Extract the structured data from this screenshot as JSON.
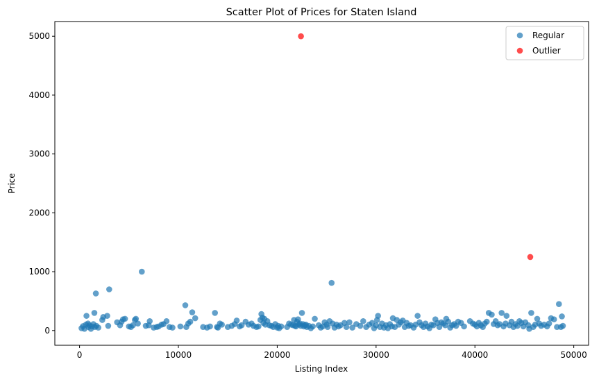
{
  "chart_data": {
    "type": "scatter",
    "title": "Scatter Plot of Prices for Staten Island",
    "xlabel": "Listing Index",
    "ylabel": "Price",
    "xlim": [
      -2500,
      51500
    ],
    "ylim": [
      -250,
      5250
    ],
    "xticks": [
      0,
      10000,
      20000,
      30000,
      40000,
      50000
    ],
    "yticks": [
      0,
      1000,
      2000,
      3000,
      4000,
      5000
    ],
    "xtick_labels": [
      "0",
      "10000",
      "20000",
      "30000",
      "40000",
      "50000"
    ],
    "ytick_labels": [
      "0",
      "1000",
      "2000",
      "3000",
      "4000",
      "5000"
    ],
    "grid": false,
    "legend_position": "top-right",
    "series": [
      {
        "name": "Regular",
        "color": "#1f77b4",
        "points": [
          [
            200,
            40
          ],
          [
            350,
            75
          ],
          [
            500,
            30
          ],
          [
            650,
            100
          ],
          [
            700,
            250
          ],
          [
            850,
            120
          ],
          [
            900,
            60
          ],
          [
            1000,
            90
          ],
          [
            1150,
            30
          ],
          [
            1250,
            70
          ],
          [
            1400,
            110
          ],
          [
            1500,
            300
          ],
          [
            1550,
            60
          ],
          [
            1650,
            630
          ],
          [
            1700,
            80
          ],
          [
            1900,
            50
          ],
          [
            2300,
            180
          ],
          [
            2400,
            230
          ],
          [
            2800,
            250
          ],
          [
            2900,
            80
          ],
          [
            3000,
            700
          ],
          [
            3800,
            140
          ],
          [
            4100,
            90
          ],
          [
            4250,
            150
          ],
          [
            4400,
            190
          ],
          [
            4600,
            200
          ],
          [
            5000,
            70
          ],
          [
            5200,
            60
          ],
          [
            5400,
            90
          ],
          [
            5600,
            180
          ],
          [
            5700,
            200
          ],
          [
            5900,
            120
          ],
          [
            6300,
            1000
          ],
          [
            6700,
            80
          ],
          [
            7000,
            90
          ],
          [
            7100,
            160
          ],
          [
            7500,
            50
          ],
          [
            7800,
            60
          ],
          [
            8000,
            70
          ],
          [
            8300,
            100
          ],
          [
            8500,
            110
          ],
          [
            8800,
            160
          ],
          [
            9100,
            60
          ],
          [
            9400,
            50
          ],
          [
            10200,
            70
          ],
          [
            10700,
            430
          ],
          [
            10800,
            60
          ],
          [
            11000,
            120
          ],
          [
            11200,
            150
          ],
          [
            11400,
            310
          ],
          [
            11700,
            210
          ],
          [
            12500,
            60
          ],
          [
            12900,
            50
          ],
          [
            13200,
            70
          ],
          [
            13700,
            300
          ],
          [
            13900,
            60
          ],
          [
            14000,
            50
          ],
          [
            14200,
            120
          ],
          [
            14400,
            100
          ],
          [
            15000,
            60
          ],
          [
            15400,
            80
          ],
          [
            15700,
            110
          ],
          [
            15900,
            170
          ],
          [
            16200,
            70
          ],
          [
            16400,
            90
          ],
          [
            16800,
            150
          ],
          [
            17100,
            100
          ],
          [
            17400,
            120
          ],
          [
            17600,
            80
          ],
          [
            17900,
            60
          ],
          [
            18100,
            70
          ],
          [
            18300,
            180
          ],
          [
            18400,
            280
          ],
          [
            18500,
            220
          ],
          [
            18600,
            130
          ],
          [
            18700,
            200
          ],
          [
            18800,
            100
          ],
          [
            19000,
            160
          ],
          [
            19200,
            90
          ],
          [
            19400,
            80
          ],
          [
            19600,
            60
          ],
          [
            19800,
            110
          ],
          [
            20000,
            50
          ],
          [
            20100,
            80
          ],
          [
            20200,
            40
          ],
          [
            20400,
            70
          ],
          [
            21000,
            60
          ],
          [
            21200,
            120
          ],
          [
            21400,
            100
          ],
          [
            21600,
            90
          ],
          [
            21700,
            180
          ],
          [
            21800,
            80
          ],
          [
            21900,
            70
          ],
          [
            22000,
            150
          ],
          [
            22100,
            190
          ],
          [
            22200,
            100
          ],
          [
            22300,
            120
          ],
          [
            22400,
            80
          ],
          [
            22500,
            300
          ],
          [
            22600,
            110
          ],
          [
            22700,
            70
          ],
          [
            22800,
            90
          ],
          [
            22900,
            100
          ],
          [
            23000,
            60
          ],
          [
            23200,
            80
          ],
          [
            23400,
            40
          ],
          [
            23600,
            70
          ],
          [
            23800,
            200
          ],
          [
            24200,
            90
          ],
          [
            24400,
            50
          ],
          [
            24600,
            70
          ],
          [
            24800,
            140
          ],
          [
            25000,
            100
          ],
          [
            25100,
            60
          ],
          [
            25300,
            160
          ],
          [
            25500,
            810
          ],
          [
            25600,
            120
          ],
          [
            25800,
            50
          ],
          [
            26000,
            100
          ],
          [
            26200,
            70
          ],
          [
            26400,
            90
          ],
          [
            26800,
            130
          ],
          [
            27000,
            60
          ],
          [
            27300,
            140
          ],
          [
            27600,
            50
          ],
          [
            28000,
            110
          ],
          [
            28400,
            80
          ],
          [
            28700,
            160
          ],
          [
            29000,
            60
          ],
          [
            29300,
            100
          ],
          [
            29600,
            130
          ],
          [
            29800,
            40
          ],
          [
            30000,
            90
          ],
          [
            30100,
            180
          ],
          [
            30200,
            250
          ],
          [
            30400,
            60
          ],
          [
            30600,
            120
          ],
          [
            30800,
            50
          ],
          [
            31000,
            90
          ],
          [
            31200,
            40
          ],
          [
            31400,
            110
          ],
          [
            31600,
            70
          ],
          [
            31700,
            210
          ],
          [
            31900,
            60
          ],
          [
            32100,
            180
          ],
          [
            32300,
            100
          ],
          [
            32500,
            140
          ],
          [
            32700,
            170
          ],
          [
            32900,
            60
          ],
          [
            33100,
            130
          ],
          [
            33300,
            80
          ],
          [
            33500,
            90
          ],
          [
            33800,
            50
          ],
          [
            34000,
            100
          ],
          [
            34200,
            250
          ],
          [
            34400,
            140
          ],
          [
            34600,
            90
          ],
          [
            34800,
            60
          ],
          [
            35000,
            120
          ],
          [
            35200,
            70
          ],
          [
            35400,
            40
          ],
          [
            35600,
            100
          ],
          [
            35800,
            90
          ],
          [
            36000,
            190
          ],
          [
            36200,
            130
          ],
          [
            36400,
            60
          ],
          [
            36600,
            140
          ],
          [
            36800,
            120
          ],
          [
            37000,
            90
          ],
          [
            37100,
            200
          ],
          [
            37300,
            150
          ],
          [
            37500,
            50
          ],
          [
            37700,
            90
          ],
          [
            37900,
            110
          ],
          [
            38100,
            80
          ],
          [
            38300,
            150
          ],
          [
            38600,
            130
          ],
          [
            38900,
            70
          ],
          [
            39500,
            160
          ],
          [
            39800,
            120
          ],
          [
            40000,
            100
          ],
          [
            40200,
            70
          ],
          [
            40400,
            130
          ],
          [
            40600,
            90
          ],
          [
            40800,
            60
          ],
          [
            41000,
            120
          ],
          [
            41200,
            150
          ],
          [
            41400,
            300
          ],
          [
            41700,
            270
          ],
          [
            41900,
            110
          ],
          [
            42100,
            160
          ],
          [
            42300,
            90
          ],
          [
            42500,
            110
          ],
          [
            42700,
            300
          ],
          [
            42900,
            70
          ],
          [
            43100,
            120
          ],
          [
            43200,
            250
          ],
          [
            43500,
            90
          ],
          [
            43700,
            150
          ],
          [
            43900,
            60
          ],
          [
            44100,
            110
          ],
          [
            44300,
            80
          ],
          [
            44500,
            160
          ],
          [
            44700,
            130
          ],
          [
            44900,
            70
          ],
          [
            45100,
            140
          ],
          [
            45400,
            90
          ],
          [
            45500,
            30
          ],
          [
            45700,
            300
          ],
          [
            45900,
            60
          ],
          [
            46100,
            100
          ],
          [
            46300,
            200
          ],
          [
            46500,
            120
          ],
          [
            46700,
            80
          ],
          [
            47000,
            100
          ],
          [
            47300,
            70
          ],
          [
            47500,
            120
          ],
          [
            47700,
            210
          ],
          [
            48000,
            190
          ],
          [
            48300,
            60
          ],
          [
            48500,
            450
          ],
          [
            48700,
            60
          ],
          [
            48800,
            240
          ],
          [
            48900,
            80
          ]
        ]
      },
      {
        "name": "Outlier",
        "color": "#ff0000",
        "points": [
          [
            22400,
            5000
          ],
          [
            45600,
            1250
          ]
        ]
      }
    ]
  }
}
